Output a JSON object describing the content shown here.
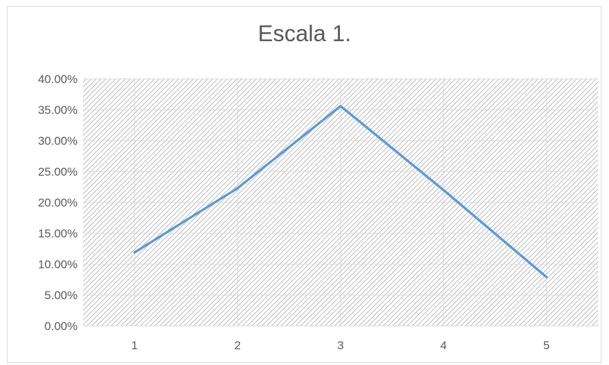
{
  "chart_data": {
    "type": "line",
    "title": "Escala 1.",
    "xlabel": "",
    "ylabel": "",
    "categories": [
      "1",
      "2",
      "3",
      "4",
      "5"
    ],
    "series": [
      {
        "values": [
          11.9,
          22.3,
          35.6,
          22.0,
          7.9
        ]
      }
    ],
    "ylim": [
      0,
      40
    ],
    "y_ticks": [
      "0.00%",
      "5.00%",
      "10.00%",
      "15.00%",
      "20.00%",
      "25.00%",
      "30.00%",
      "35.00%",
      "40.00%"
    ],
    "grid": true,
    "legend": "none",
    "colors": {
      "line": "#5b9bd5",
      "hatch": "#a6a6a6",
      "gridline": "#d9d9d9",
      "text": "#595959"
    }
  }
}
